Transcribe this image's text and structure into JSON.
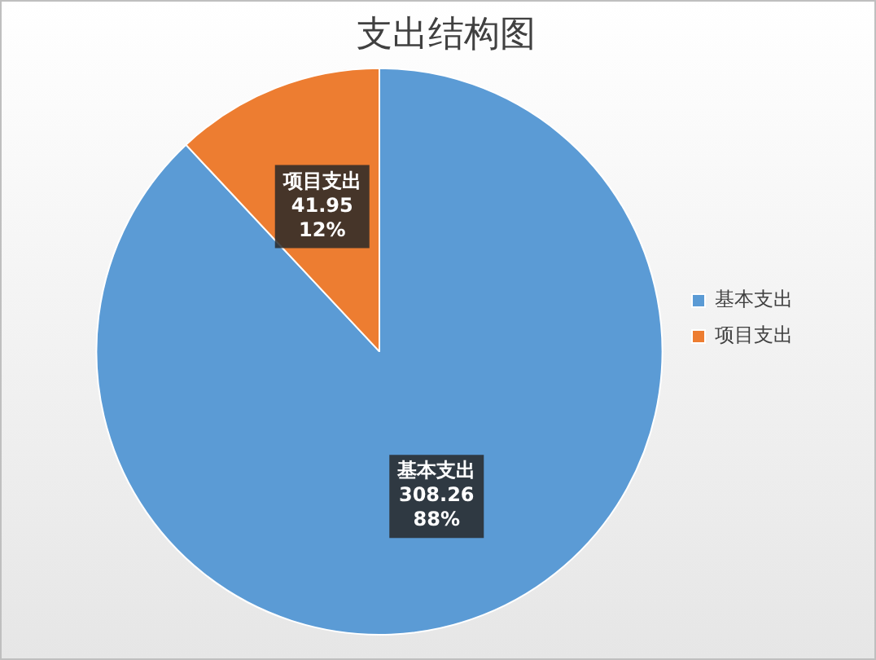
{
  "chart_data": {
    "type": "pie",
    "title": "支出结构图",
    "categories": [
      "基本支出",
      "项目支出"
    ],
    "values": [
      308.26,
      41.95
    ],
    "colors": [
      "#5b9bd5",
      "#ed7d31"
    ],
    "value_labels": [
      "308.26\n88%",
      "41.95\n12%"
    ],
    "legend": "right"
  }
}
